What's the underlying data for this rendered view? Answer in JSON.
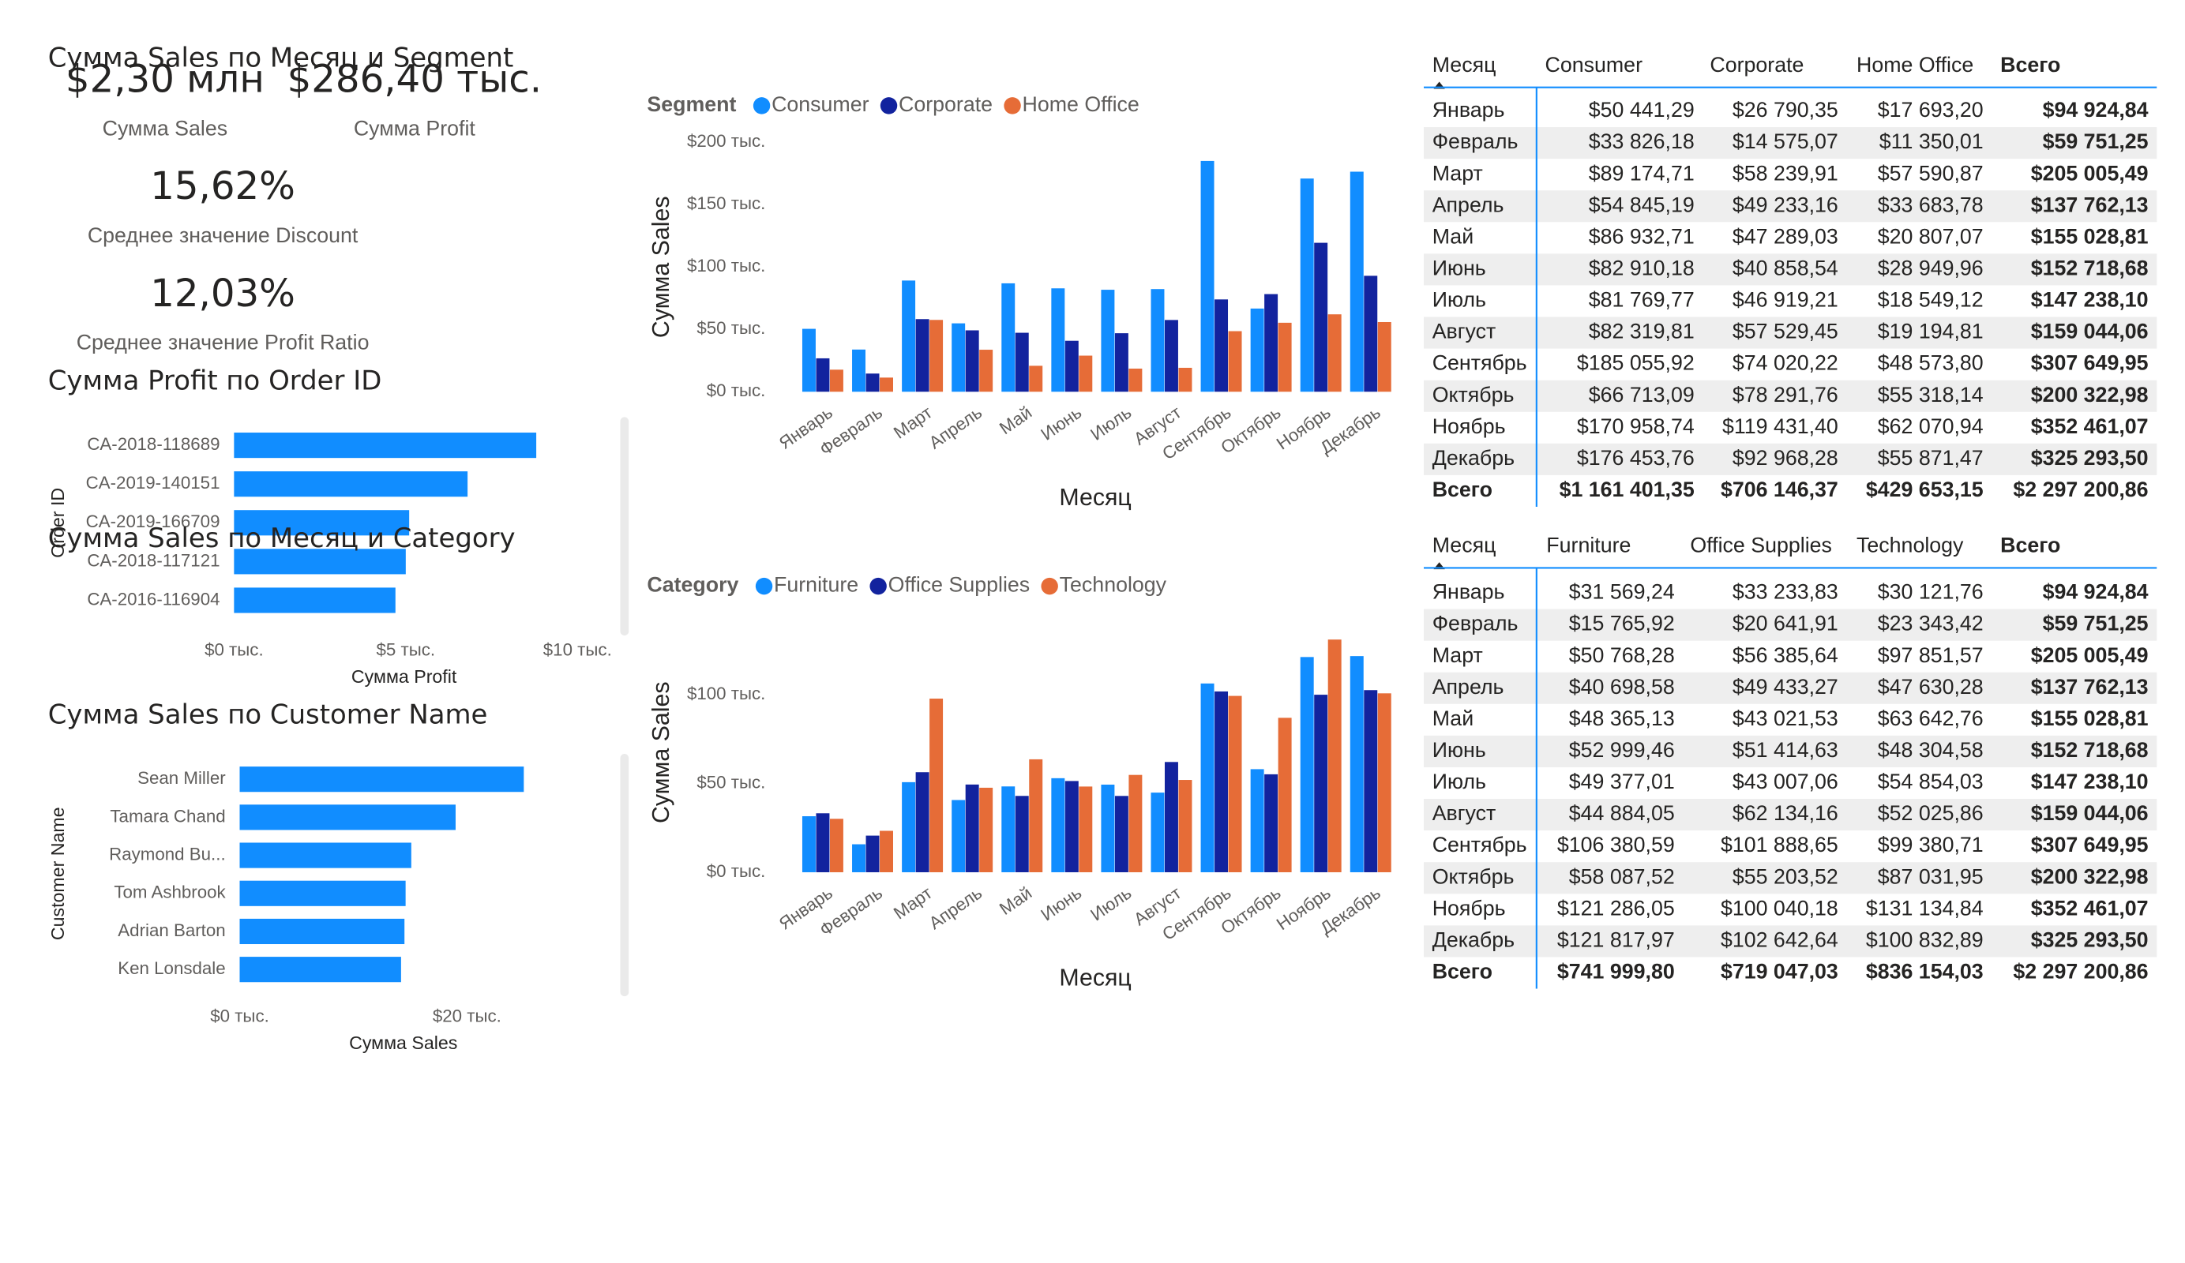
{
  "kpis": [
    {
      "value": "$2,30 млн",
      "label": "Сумма Sales"
    },
    {
      "value": "$286,40 тыс.",
      "label": "Сумма Profit"
    },
    {
      "value": "15,62%",
      "label": "Среднее значение Discount"
    },
    {
      "value": "12,03%",
      "label": "Среднее значение Profit Ratio"
    }
  ],
  "chart_data": [
    {
      "type": "bar",
      "orientation": "horizontal",
      "title": "Сумма Profit по Order ID",
      "categories": [
        "CA-2018-118689",
        "CA-2019-140151",
        "CA-2019-166709",
        "CA-2018-117121",
        "CA-2016-116904"
      ],
      "values": [
        8.8,
        6.8,
        5.1,
        5.0,
        4.7
      ],
      "color": "#118DFF",
      "xlim": [
        0,
        11
      ],
      "xticks": [
        {
          "value": 0,
          "label": "$0 тыс."
        },
        {
          "value": 5,
          "label": "$5 тыс."
        },
        {
          "value": 10,
          "label": "$10 тыс."
        }
      ],
      "x_label": "Сумма Profit",
      "y_label": "Order ID"
    },
    {
      "type": "bar",
      "orientation": "horizontal",
      "title": "Сумма Sales по Customer Name",
      "categories": [
        "Sean Miller",
        "Tamara Chand",
        "Raymond Bu...",
        "Tom Ashbrook",
        "Adrian Barton",
        "Ken Lonsdale"
      ],
      "values": [
        25.0,
        19.0,
        15.1,
        14.6,
        14.5,
        14.2
      ],
      "color": "#118DFF",
      "xlim": [
        0,
        32
      ],
      "xticks": [
        {
          "value": 0,
          "label": "$0 тыс."
        },
        {
          "value": 20,
          "label": "$20 тыс."
        }
      ],
      "x_label": "Сумма Sales",
      "y_label": "Customer Name"
    },
    {
      "type": "bar",
      "orientation": "vertical",
      "title": "Сумма Sales по Месяц и Segment",
      "legend_title": "Segment",
      "categories": [
        "Январь",
        "Февраль",
        "Март",
        "Апрель",
        "Май",
        "Июнь",
        "Июль",
        "Август",
        "Сентябрь",
        "Октябрь",
        "Ноябрь",
        "Декабрь"
      ],
      "series": [
        {
          "name": "Consumer",
          "color": "#118DFF",
          "values": [
            50.44129,
            33.82618,
            89.17471,
            54.84519,
            86.93271,
            82.91018,
            81.76977,
            82.31981,
            185.05592,
            66.71309,
            170.95874,
            176.45376
          ]
        },
        {
          "name": "Corporate",
          "color": "#12239E",
          "values": [
            26.79035,
            14.57507,
            58.23991,
            49.23316,
            47.28903,
            40.85854,
            46.91921,
            57.52945,
            74.02022,
            78.29176,
            119.4314,
            92.96828
          ]
        },
        {
          "name": "Home Office",
          "color": "#E66C37",
          "values": [
            17.6932,
            11.35001,
            57.59087,
            33.68378,
            20.80707,
            28.94996,
            18.54912,
            19.19481,
            48.5738,
            55.31814,
            62.07094,
            55.87147
          ]
        }
      ],
      "ylim": [
        0,
        200
      ],
      "yticks": [
        {
          "value": 0,
          "label": "$0 тыс."
        },
        {
          "value": 50,
          "label": "$50 тыс."
        },
        {
          "value": 100,
          "label": "$100 тыс."
        },
        {
          "value": 150,
          "label": "$150 тыс."
        },
        {
          "value": 200,
          "label": "$200 тыс."
        }
      ],
      "x_label": "Месяц",
      "y_label": "Сумма Sales"
    },
    {
      "type": "bar",
      "orientation": "vertical",
      "title": "Сумма Sales по Месяц и Category",
      "legend_title": "Category",
      "categories": [
        "Январь",
        "Февраль",
        "Март",
        "Апрель",
        "Май",
        "Июнь",
        "Июль",
        "Август",
        "Сентябрь",
        "Октябрь",
        "Ноябрь",
        "Декабрь"
      ],
      "series": [
        {
          "name": "Furniture",
          "color": "#118DFF",
          "values": [
            31.56924,
            15.76592,
            50.76828,
            40.69858,
            48.36513,
            52.99946,
            49.37701,
            44.88405,
            106.38059,
            58.08752,
            121.28605,
            121.81797
          ]
        },
        {
          "name": "Office Supplies",
          "color": "#12239E",
          "values": [
            33.23383,
            20.64191,
            56.38564,
            49.43327,
            43.02153,
            51.41463,
            43.00706,
            62.13416,
            101.88865,
            55.20352,
            100.04018,
            102.64264
          ]
        },
        {
          "name": "Technology",
          "color": "#E66C37",
          "values": [
            30.12176,
            23.34342,
            97.85157,
            47.63028,
            63.64276,
            48.30458,
            54.85403,
            52.02586,
            99.38071,
            87.03195,
            131.13484,
            100.83289
          ]
        }
      ],
      "ylim": [
        0,
        135
      ],
      "yticks": [
        {
          "value": 0,
          "label": "$0 тыс."
        },
        {
          "value": 50,
          "label": "$50 тыс."
        },
        {
          "value": 100,
          "label": "$100 тыс."
        }
      ],
      "x_label": "Месяц",
      "y_label": "Сумма Sales"
    }
  ],
  "tables": [
    {
      "columns": [
        "Месяц",
        "Consumer",
        "Corporate",
        "Home Office",
        "Всего"
      ],
      "rows": [
        [
          "Январь",
          "$50 441,29",
          "$26 790,35",
          "$17 693,20",
          "$94 924,84"
        ],
        [
          "Февраль",
          "$33 826,18",
          "$14 575,07",
          "$11 350,01",
          "$59 751,25"
        ],
        [
          "Март",
          "$89 174,71",
          "$58 239,91",
          "$57 590,87",
          "$205 005,49"
        ],
        [
          "Апрель",
          "$54 845,19",
          "$49 233,16",
          "$33 683,78",
          "$137 762,13"
        ],
        [
          "Май",
          "$86 932,71",
          "$47 289,03",
          "$20 807,07",
          "$155 028,81"
        ],
        [
          "Июнь",
          "$82 910,18",
          "$40 858,54",
          "$28 949,96",
          "$152 718,68"
        ],
        [
          "Июль",
          "$81 769,77",
          "$46 919,21",
          "$18 549,12",
          "$147 238,10"
        ],
        [
          "Август",
          "$82 319,81",
          "$57 529,45",
          "$19 194,81",
          "$159 044,06"
        ],
        [
          "Сентябрь",
          "$185 055,92",
          "$74 020,22",
          "$48 573,80",
          "$307 649,95"
        ],
        [
          "Октябрь",
          "$66 713,09",
          "$78 291,76",
          "$55 318,14",
          "$200 322,98"
        ],
        [
          "Ноябрь",
          "$170 958,74",
          "$119 431,40",
          "$62 070,94",
          "$352 461,07"
        ],
        [
          "Декабрь",
          "$176 453,76",
          "$92 968,28",
          "$55 871,47",
          "$325 293,50"
        ]
      ],
      "total": [
        "Всего",
        "$1 161 401,35",
        "$706 146,37",
        "$429 653,15",
        "$2 297 200,86"
      ]
    },
    {
      "columns": [
        "Месяц",
        "Furniture",
        "Office Supplies",
        "Technology",
        "Всего"
      ],
      "rows": [
        [
          "Январь",
          "$31 569,24",
          "$33 233,83",
          "$30 121,76",
          "$94 924,84"
        ],
        [
          "Февраль",
          "$15 765,92",
          "$20 641,91",
          "$23 343,42",
          "$59 751,25"
        ],
        [
          "Март",
          "$50 768,28",
          "$56 385,64",
          "$97 851,57",
          "$205 005,49"
        ],
        [
          "Апрель",
          "$40 698,58",
          "$49 433,27",
          "$47 630,28",
          "$137 762,13"
        ],
        [
          "Май",
          "$48 365,13",
          "$43 021,53",
          "$63 642,76",
          "$155 028,81"
        ],
        [
          "Июнь",
          "$52 999,46",
          "$51 414,63",
          "$48 304,58",
          "$152 718,68"
        ],
        [
          "Июль",
          "$49 377,01",
          "$43 007,06",
          "$54 854,03",
          "$147 238,10"
        ],
        [
          "Август",
          "$44 884,05",
          "$62 134,16",
          "$52 025,86",
          "$159 044,06"
        ],
        [
          "Сентябрь",
          "$106 380,59",
          "$101 888,65",
          "$99 380,71",
          "$307 649,95"
        ],
        [
          "Октябрь",
          "$58 087,52",
          "$55 203,52",
          "$87 031,95",
          "$200 322,98"
        ],
        [
          "Ноябрь",
          "$121 286,05",
          "$100 040,18",
          "$131 134,84",
          "$352 461,07"
        ],
        [
          "Декабрь",
          "$121 817,97",
          "$102 642,64",
          "$100 832,89",
          "$325 293,50"
        ]
      ],
      "total": [
        "Всего",
        "$741 999,80",
        "$719 047,03",
        "$836 154,03",
        "$2 297 200,86"
      ]
    }
  ]
}
